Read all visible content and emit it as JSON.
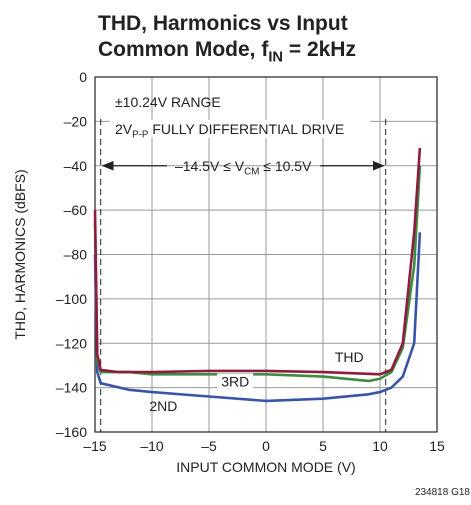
{
  "chart_data": {
    "type": "line",
    "title": [
      [
        "THD, Harmonics vs Input"
      ],
      [
        "Common Mode, f",
        "IN",
        " = 2kHz"
      ]
    ],
    "x_label": "INPUT COMMON MODE (V)",
    "y_label": "THD, HARMONICS (dBFS)",
    "annotations": {
      "range": [
        "±10.24V RANGE"
      ],
      "drive": [
        "2V",
        "P-P",
        " FULLY DIFFERENTIAL DRIVE"
      ],
      "vcm": [
        "–14.5V ≤ V",
        "CM",
        " ≤ 10.5V"
      ],
      "footnote": [
        "234818 G18"
      ]
    },
    "vcm_range": [
      -14.5,
      10.5
    ],
    "xlim": [
      -15,
      15
    ],
    "ylim": [
      -160,
      0
    ],
    "xticks": [
      {
        "value": -15,
        "label": "–15"
      },
      {
        "value": -10,
        "label": "–10"
      },
      {
        "value": -5,
        "label": "–5"
      },
      0,
      5,
      10,
      15
    ],
    "yticks": [
      0,
      {
        "value": -20,
        "label": "–20"
      },
      {
        "value": -40,
        "label": "–40"
      },
      {
        "value": -60,
        "label": "–60"
      },
      {
        "value": -80,
        "label": "–80"
      },
      {
        "value": -100,
        "label": "–100"
      },
      {
        "value": -120,
        "label": "–120"
      },
      {
        "value": -140,
        "label": "–140"
      },
      {
        "value": -160,
        "label": "–160"
      }
    ],
    "grid": true,
    "series": [
      {
        "name": "2ND",
        "color": "#3a55a8",
        "x": [
          -15,
          -14.8,
          -14.5,
          -12,
          -10,
          -5,
          0,
          5,
          9,
          10,
          11,
          12,
          13,
          13.5
        ],
        "values": [
          -80,
          -133,
          -138,
          -141,
          -142,
          -144,
          -146,
          -145,
          -143,
          -142,
          -140,
          -135,
          -120,
          -70
        ]
      },
      {
        "name": "3RD",
        "color": "#3d8c3f",
        "x": [
          -15,
          -14.8,
          -14.5,
          -12,
          -10,
          -5,
          0,
          5,
          9,
          10,
          11,
          12,
          13,
          13.5
        ],
        "values": [
          -65,
          -128,
          -133,
          -133,
          -134,
          -134,
          -134,
          -135,
          -137,
          -136,
          -133,
          -122,
          -85,
          -40
        ]
      },
      {
        "name": "THD",
        "color": "#8e1c3e",
        "x": [
          -15,
          -14.8,
          -14.5,
          -13,
          -10,
          -5,
          0,
          5,
          10,
          11,
          12,
          13,
          13.5
        ],
        "values": [
          -60,
          -125,
          -132,
          -133,
          -133,
          -132.5,
          -132.5,
          -133,
          -134,
          -132,
          -120,
          -70,
          -32
        ]
      }
    ]
  }
}
